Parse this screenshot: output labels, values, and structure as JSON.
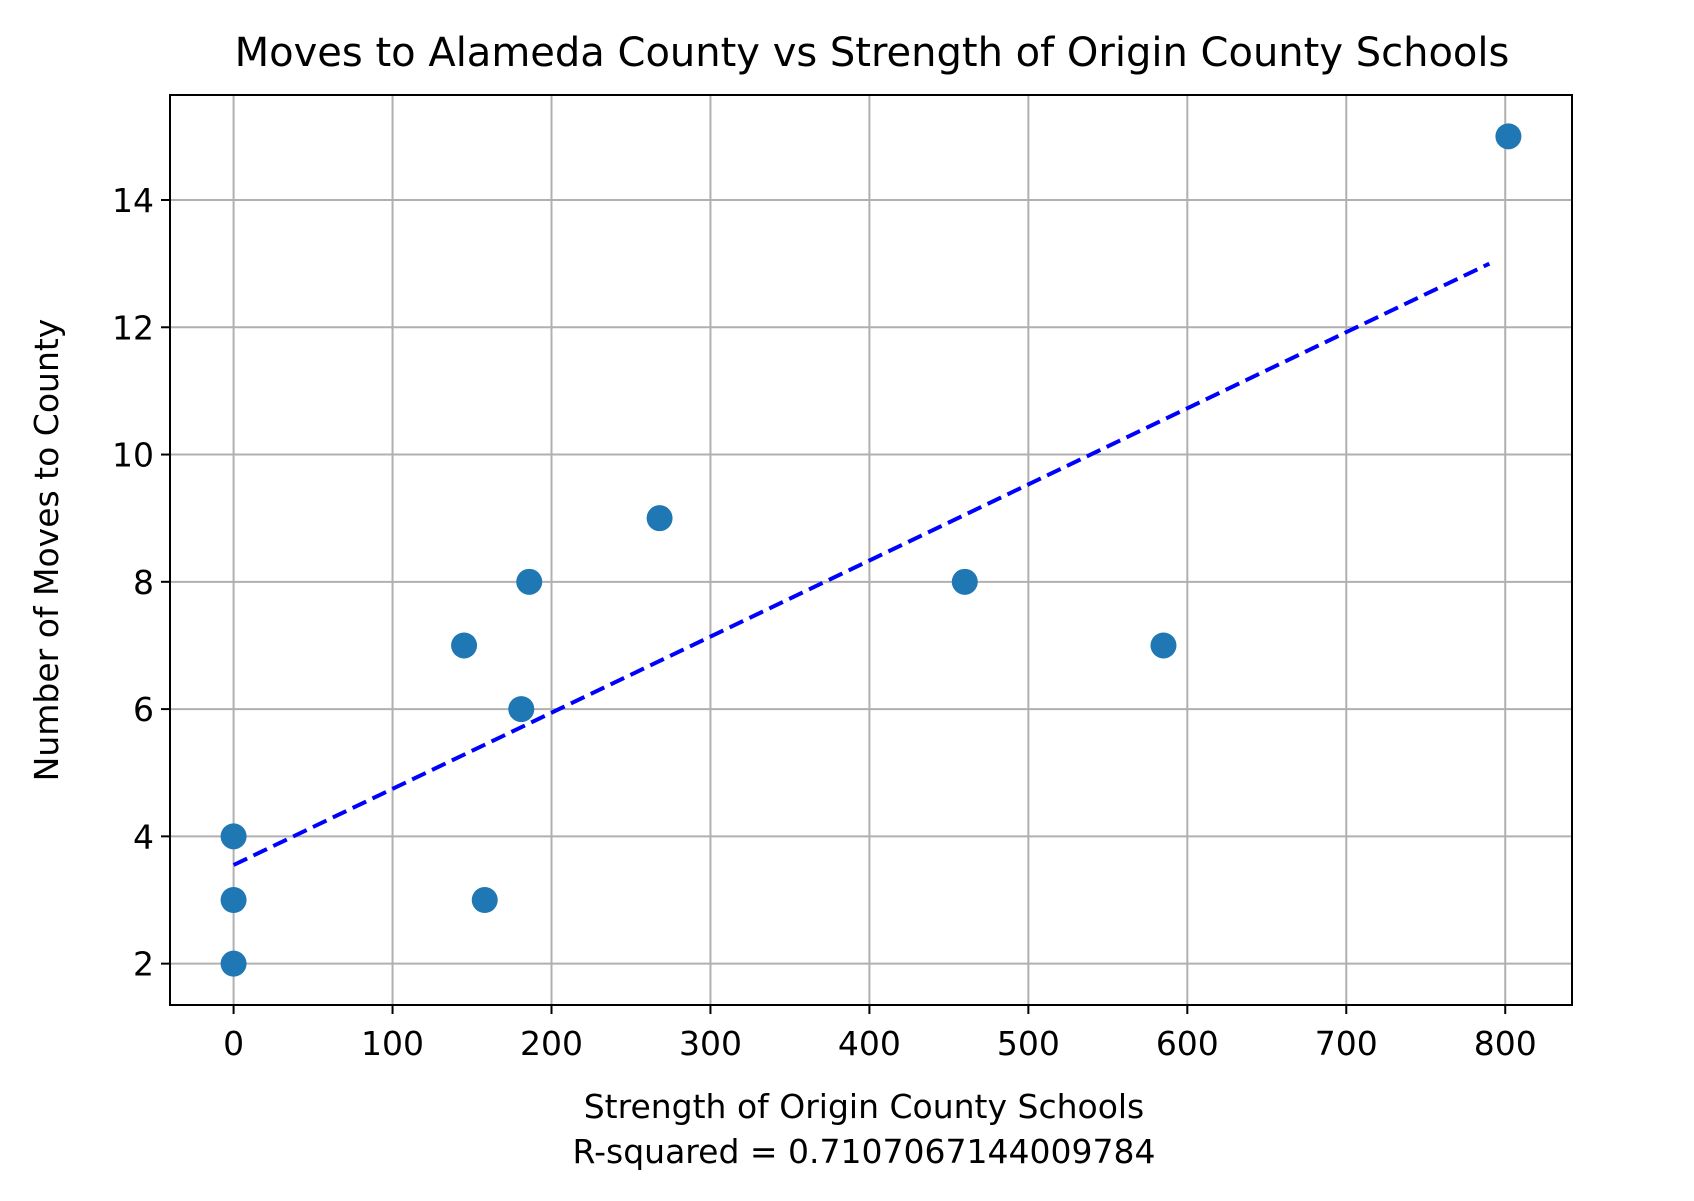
{
  "chart_data": {
    "type": "scatter",
    "title": "Moves to Alameda County vs Strength of Origin County Schools",
    "xlabel": "Strength of Origin County Schools",
    "xlabel_sub": "R-squared = 0.7107067144009784",
    "ylabel": "Number of Moves to County",
    "xlim": [
      -40,
      842
    ],
    "ylim": [
      1.35,
      15.65
    ],
    "xticks": [
      0,
      100,
      200,
      300,
      400,
      500,
      600,
      700,
      800
    ],
    "yticks": [
      2,
      4,
      6,
      8,
      10,
      12,
      14
    ],
    "grid": true,
    "points": [
      {
        "x": 0,
        "y": 4
      },
      {
        "x": 0,
        "y": 3
      },
      {
        "x": 0,
        "y": 2
      },
      {
        "x": 145,
        "y": 7
      },
      {
        "x": 158,
        "y": 3
      },
      {
        "x": 181,
        "y": 6
      },
      {
        "x": 186,
        "y": 8
      },
      {
        "x": 268,
        "y": 9
      },
      {
        "x": 460,
        "y": 8
      },
      {
        "x": 585,
        "y": 7
      },
      {
        "x": 802,
        "y": 15
      }
    ],
    "trendline": {
      "x": [
        0,
        790
      ],
      "y": [
        3.55,
        13.0
      ],
      "style": "dashed"
    },
    "colors": {
      "points": "#1f77b4",
      "trendline": "#0000ff",
      "grid": "#b0b0b0"
    }
  }
}
